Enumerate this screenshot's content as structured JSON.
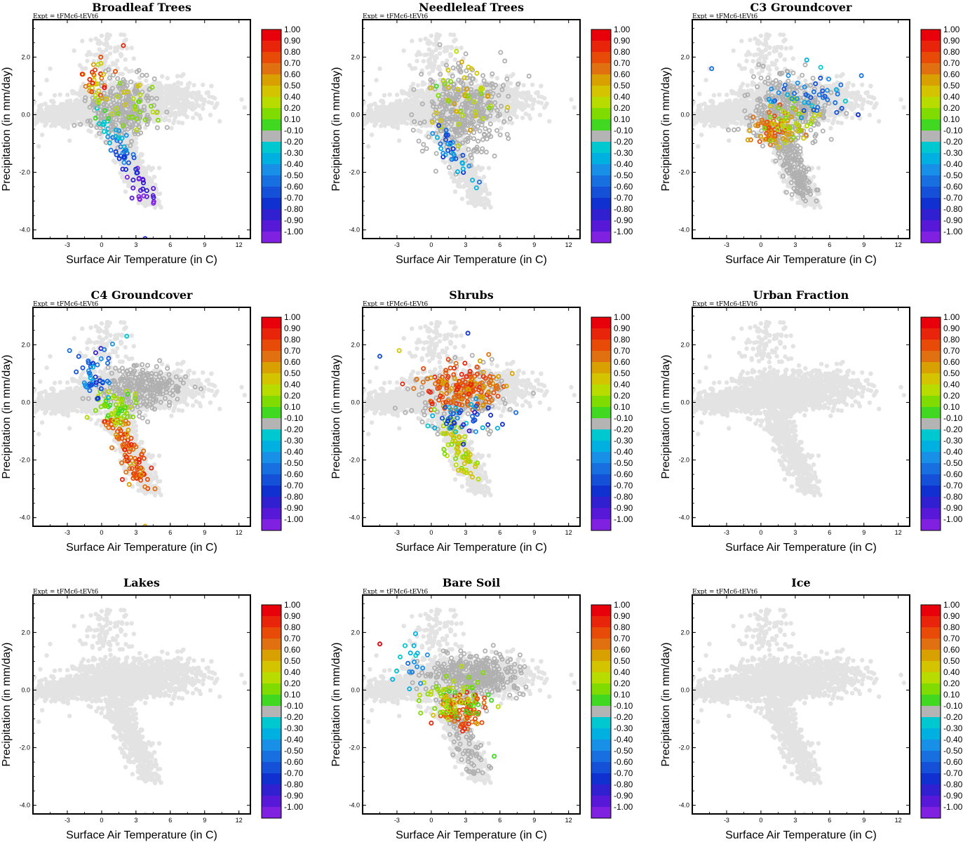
{
  "figure": {
    "expt_label": "Expt = tFMc6-tEVt6",
    "xlabel": "Surface Air Temperature (in C)",
    "ylabel": "Precipitation (in mm/day)"
  },
  "chart_data": [
    {
      "type": "scatter",
      "title": "Broadleaf Trees",
      "mode": "broadleaf"
    },
    {
      "type": "scatter",
      "title": "Needleleaf Trees",
      "mode": "needleleaf"
    },
    {
      "type": "scatter",
      "title": "C3 Groundcover",
      "mode": "c3"
    },
    {
      "type": "scatter",
      "title": "C4 Groundcover",
      "mode": "c4"
    },
    {
      "type": "scatter",
      "title": "Shrubs",
      "mode": "shrubs"
    },
    {
      "type": "scatter",
      "title": "Urban Fraction",
      "mode": "none"
    },
    {
      "type": "scatter",
      "title": "Lakes",
      "mode": "none"
    },
    {
      "type": "scatter",
      "title": "Bare Soil",
      "mode": "baresoil"
    },
    {
      "type": "scatter",
      "title": "Ice",
      "mode": "none"
    }
  ],
  "axes": {
    "xlim": [
      -6,
      13
    ],
    "ylim": [
      -4.3,
      3.3
    ],
    "xticks": [
      -3,
      0,
      3,
      6,
      9,
      12
    ],
    "xtick_labels": [
      "-3",
      "0",
      "3",
      "6",
      "9",
      "12"
    ],
    "yticks": [
      2.0,
      0.0,
      -2.0,
      -4.0
    ],
    "ytick_labels": [
      "2.0",
      "0.0",
      "-2.0",
      "-4.0"
    ]
  },
  "colorbar": {
    "labels": [
      "1.00",
      "0.90",
      "0.80",
      "0.70",
      "0.60",
      "0.50",
      "0.40",
      "0.20",
      "0.10",
      "-0.10",
      "-0.20",
      "-0.30",
      "-0.40",
      "-0.50",
      "-0.60",
      "-0.70",
      "-0.80",
      "-0.90",
      "-1.00"
    ],
    "colors": [
      "#e8000b",
      "#e8250a",
      "#e84a08",
      "#e07010",
      "#d8a000",
      "#d4c400",
      "#b8dc00",
      "#80dc00",
      "#40d820",
      "#b4b4b4",
      "#00c8d0",
      "#00b0e0",
      "#1890e8",
      "#1870e0",
      "#1450d8",
      "#1030d0",
      "#3020d0",
      "#5818d8",
      "#8020e0"
    ]
  },
  "scatter_colors": {
    "base": "#e3e3e3",
    "gray": "#b0b0b0"
  }
}
